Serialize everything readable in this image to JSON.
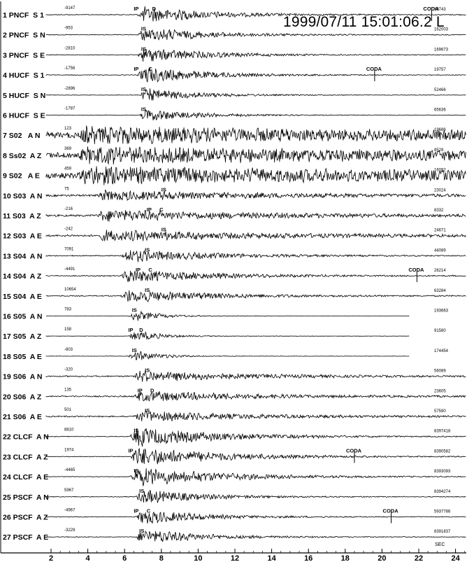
{
  "chart_data": {
    "type": "line",
    "title": "1999/07/11 15:01:06.2 L",
    "x_unit_label": "SEC",
    "xlim": [
      1.5,
      25
    ],
    "x_ticks": [
      2,
      4,
      6,
      8,
      10,
      12,
      14,
      16,
      18,
      20,
      22,
      24
    ],
    "traces": [
      {
        "label": "1 PNCF  S 1",
        "left_value": "-9147",
        "right_value": "19743",
        "start": 1.6,
        "end": 25,
        "onset": 6.7,
        "amp": 0.9,
        "decay": 0.28,
        "noise": 0.05,
        "picks": [
          {
            "text": "IP",
            "t": 6.5
          },
          {
            "text": "D",
            "t": 7.5
          },
          {
            "text": "CODA",
            "t": 22.7
          }
        ]
      },
      {
        "label": "2 PNCF  S N",
        "left_value": "-953",
        "right_value": "162003",
        "start": 1.6,
        "end": 25,
        "onset": 6.7,
        "amp": 0.8,
        "decay": 0.28,
        "noise": 0.04,
        "picks": [
          {
            "text": "IS",
            "t": 6.9
          }
        ]
      },
      {
        "label": "3 PNCF  S E",
        "left_value": "-2810",
        "right_value": "169673",
        "start": 1.6,
        "end": 25,
        "onset": 6.7,
        "amp": 0.8,
        "decay": 0.28,
        "noise": 0.04,
        "picks": [
          {
            "text": "IS",
            "t": 6.9
          }
        ]
      },
      {
        "label": "4 HUCF  S 1",
        "left_value": "-1756",
        "right_value": "19757",
        "start": 1.6,
        "end": 25,
        "onset": 6.7,
        "amp": 0.9,
        "decay": 0.3,
        "noise": 0.04,
        "picks": [
          {
            "text": "IP",
            "t": 6.5
          },
          {
            "text": "C",
            "t": 7.3
          },
          {
            "text": "CODA",
            "t": 19.6
          }
        ]
      },
      {
        "label": "5 HUCF  S N",
        "left_value": "-2896",
        "right_value": "52466",
        "start": 1.6,
        "end": 25,
        "onset": 6.8,
        "amp": 0.7,
        "decay": 0.35,
        "noise": 0.03,
        "picks": [
          {
            "text": "IS",
            "t": 6.9
          }
        ]
      },
      {
        "label": "6 HUCF  S E",
        "left_value": "-1787",
        "right_value": "65636",
        "start": 1.6,
        "end": 25,
        "onset": 6.8,
        "amp": 0.7,
        "decay": 0.35,
        "noise": 0.03,
        "picks": [
          {
            "text": "IS",
            "t": 6.9
          }
        ]
      },
      {
        "label": "7 S02   A N",
        "left_value": "123",
        "right_value": "19686",
        "start": 1.6,
        "end": 25,
        "onset": 3.5,
        "amp": 0.75,
        "decay": 0.05,
        "noise": 0.35,
        "picks": []
      },
      {
        "label": "8 Ss02  A Z",
        "left_value": "369",
        "right_value": "8529",
        "start": 1.6,
        "end": 25,
        "onset": 3.5,
        "amp": 0.75,
        "decay": 0.05,
        "noise": 0.35,
        "picks": []
      },
      {
        "label": "9 S02   A E",
        "left_value": "459",
        "right_value": "16092",
        "start": 1.6,
        "end": 25,
        "onset": 3.5,
        "amp": 0.8,
        "decay": 0.05,
        "noise": 0.35,
        "picks": []
      },
      {
        "label": "10 S03  A N",
        "left_value": "75",
        "right_value": "23024",
        "start": 1.6,
        "end": 24.6,
        "onset": 4.5,
        "amp": 0.55,
        "decay": 0.12,
        "noise": 0.12,
        "picks": [
          {
            "text": "IS",
            "t": 8.0
          }
        ]
      },
      {
        "label": "11 S03  A Z",
        "left_value": "-216",
        "right_value": "8332",
        "start": 1.6,
        "end": 24.6,
        "onset": 4.5,
        "amp": 0.6,
        "decay": 0.12,
        "noise": 0.12,
        "picks": [
          {
            "text": "IP",
            "t": 7.2
          },
          {
            "text": "C",
            "t": 7.9
          }
        ]
      },
      {
        "label": "12 S03  A E",
        "left_value": "-242",
        "right_value": "24671",
        "start": 1.6,
        "end": 24.6,
        "onset": 4.5,
        "amp": 0.6,
        "decay": 0.12,
        "noise": 0.12,
        "picks": [
          {
            "text": "IS",
            "t": 8.0
          }
        ]
      },
      {
        "label": "13 S04  A N",
        "left_value": "7091",
        "right_value": "44089",
        "start": 1.6,
        "end": 24.6,
        "onset": 5.8,
        "amp": 0.7,
        "decay": 0.22,
        "noise": 0.06,
        "picks": [
          {
            "text": "IS",
            "t": 7.1
          }
        ]
      },
      {
        "label": "14 S04  A Z",
        "left_value": "-4491",
        "right_value": "26214",
        "start": 1.6,
        "end": 24.6,
        "onset": 5.8,
        "amp": 0.75,
        "decay": 0.22,
        "noise": 0.06,
        "picks": [
          {
            "text": "IP",
            "t": 6.6
          },
          {
            "text": "C",
            "t": 7.3
          },
          {
            "text": "CODA",
            "t": 21.9
          }
        ]
      },
      {
        "label": "15 S04  A E",
        "left_value": "10654",
        "right_value": "63284",
        "start": 1.6,
        "end": 24.6,
        "onset": 5.8,
        "amp": 0.75,
        "decay": 0.22,
        "noise": 0.06,
        "picks": [
          {
            "text": "IS",
            "t": 7.1
          }
        ]
      },
      {
        "label": "16 S05  A N",
        "left_value": "783",
        "right_value": "193663",
        "start": 1.6,
        "end": 21.5,
        "onset": 6.2,
        "amp": 0.55,
        "decay": 0.7,
        "noise": 0.02,
        "picks": [
          {
            "text": "IS",
            "t": 6.4
          }
        ]
      },
      {
        "label": "17 S05  A Z",
        "left_value": "158",
        "right_value": "91580",
        "start": 1.6,
        "end": 21.5,
        "onset": 6.2,
        "amp": 0.55,
        "decay": 0.7,
        "noise": 0.02,
        "picks": [
          {
            "text": "IP",
            "t": 6.2
          },
          {
            "text": "D",
            "t": 6.8
          }
        ]
      },
      {
        "label": "18 S05  A E",
        "left_value": "-803",
        "right_value": "174454",
        "start": 1.6,
        "end": 21.5,
        "onset": 6.2,
        "amp": 0.55,
        "decay": 0.7,
        "noise": 0.02,
        "picks": [
          {
            "text": "IS",
            "t": 6.4
          }
        ]
      },
      {
        "label": "19 S06  A N",
        "left_value": "-320",
        "right_value": "56089",
        "start": 1.6,
        "end": 25,
        "onset": 6.5,
        "amp": 0.6,
        "decay": 0.18,
        "noise": 0.08,
        "picks": [
          {
            "text": "IS",
            "t": 7.1
          }
        ]
      },
      {
        "label": "20 S06  A Z",
        "left_value": "135",
        "right_value": "23605",
        "start": 1.6,
        "end": 25,
        "onset": 6.5,
        "amp": 0.6,
        "decay": 0.18,
        "noise": 0.08,
        "picks": [
          {
            "text": "IP",
            "t": 6.7
          },
          {
            "text": "D",
            "t": 7.4
          }
        ]
      },
      {
        "label": "21 S06  A E",
        "left_value": "501",
        "right_value": "57590",
        "start": 1.6,
        "end": 25,
        "onset": 6.5,
        "amp": 0.6,
        "decay": 0.18,
        "noise": 0.08,
        "picks": [
          {
            "text": "IS",
            "t": 7.1
          }
        ]
      },
      {
        "label": "22 CLCF  A N",
        "left_value": "8810",
        "right_value": "8397418",
        "start": 1.6,
        "end": 25,
        "onset": 6.3,
        "amp": 1.1,
        "decay": 0.22,
        "noise": 0.04,
        "picks": [
          {
            "text": "IS",
            "t": 6.5
          }
        ]
      },
      {
        "label": "23 CLCF  A Z",
        "left_value": "1974",
        "right_value": "8390582",
        "start": 1.6,
        "end": 25,
        "onset": 6.3,
        "amp": 1.1,
        "decay": 0.22,
        "noise": 0.04,
        "picks": [
          {
            "text": "IP",
            "t": 6.2
          },
          {
            "text": "CODA",
            "t": 18.5
          }
        ]
      },
      {
        "label": "24 CLCF  A E",
        "left_value": "-4465",
        "right_value": "8393093",
        "start": 1.6,
        "end": 25,
        "onset": 6.3,
        "amp": 1.1,
        "decay": 0.22,
        "noise": 0.04,
        "picks": [
          {
            "text": "IS",
            "t": 6.5
          }
        ]
      },
      {
        "label": "25 PSCF  A N",
        "left_value": "5967",
        "right_value": "8394274",
        "start": 1.6,
        "end": 25,
        "onset": 6.6,
        "amp": 0.8,
        "decay": 0.3,
        "noise": 0.04,
        "picks": [
          {
            "text": "IS",
            "t": 6.8
          }
        ]
      },
      {
        "label": "26 PSCF  A Z",
        "left_value": "-4967",
        "right_value": "5937786",
        "start": 1.6,
        "end": 25,
        "onset": 6.6,
        "amp": 0.8,
        "decay": 0.3,
        "noise": 0.04,
        "picks": [
          {
            "text": "IP",
            "t": 6.5
          },
          {
            "text": "C",
            "t": 7.2
          },
          {
            "text": "CODA",
            "t": 20.5
          }
        ]
      },
      {
        "label": "27 PSCF  A E",
        "left_value": "-3229",
        "right_value": "8391837",
        "start": 1.6,
        "end": 25,
        "onset": 6.6,
        "amp": 0.8,
        "decay": 0.3,
        "noise": 0.04,
        "picks": [
          {
            "text": "IS",
            "t": 6.8
          }
        ]
      }
    ]
  }
}
